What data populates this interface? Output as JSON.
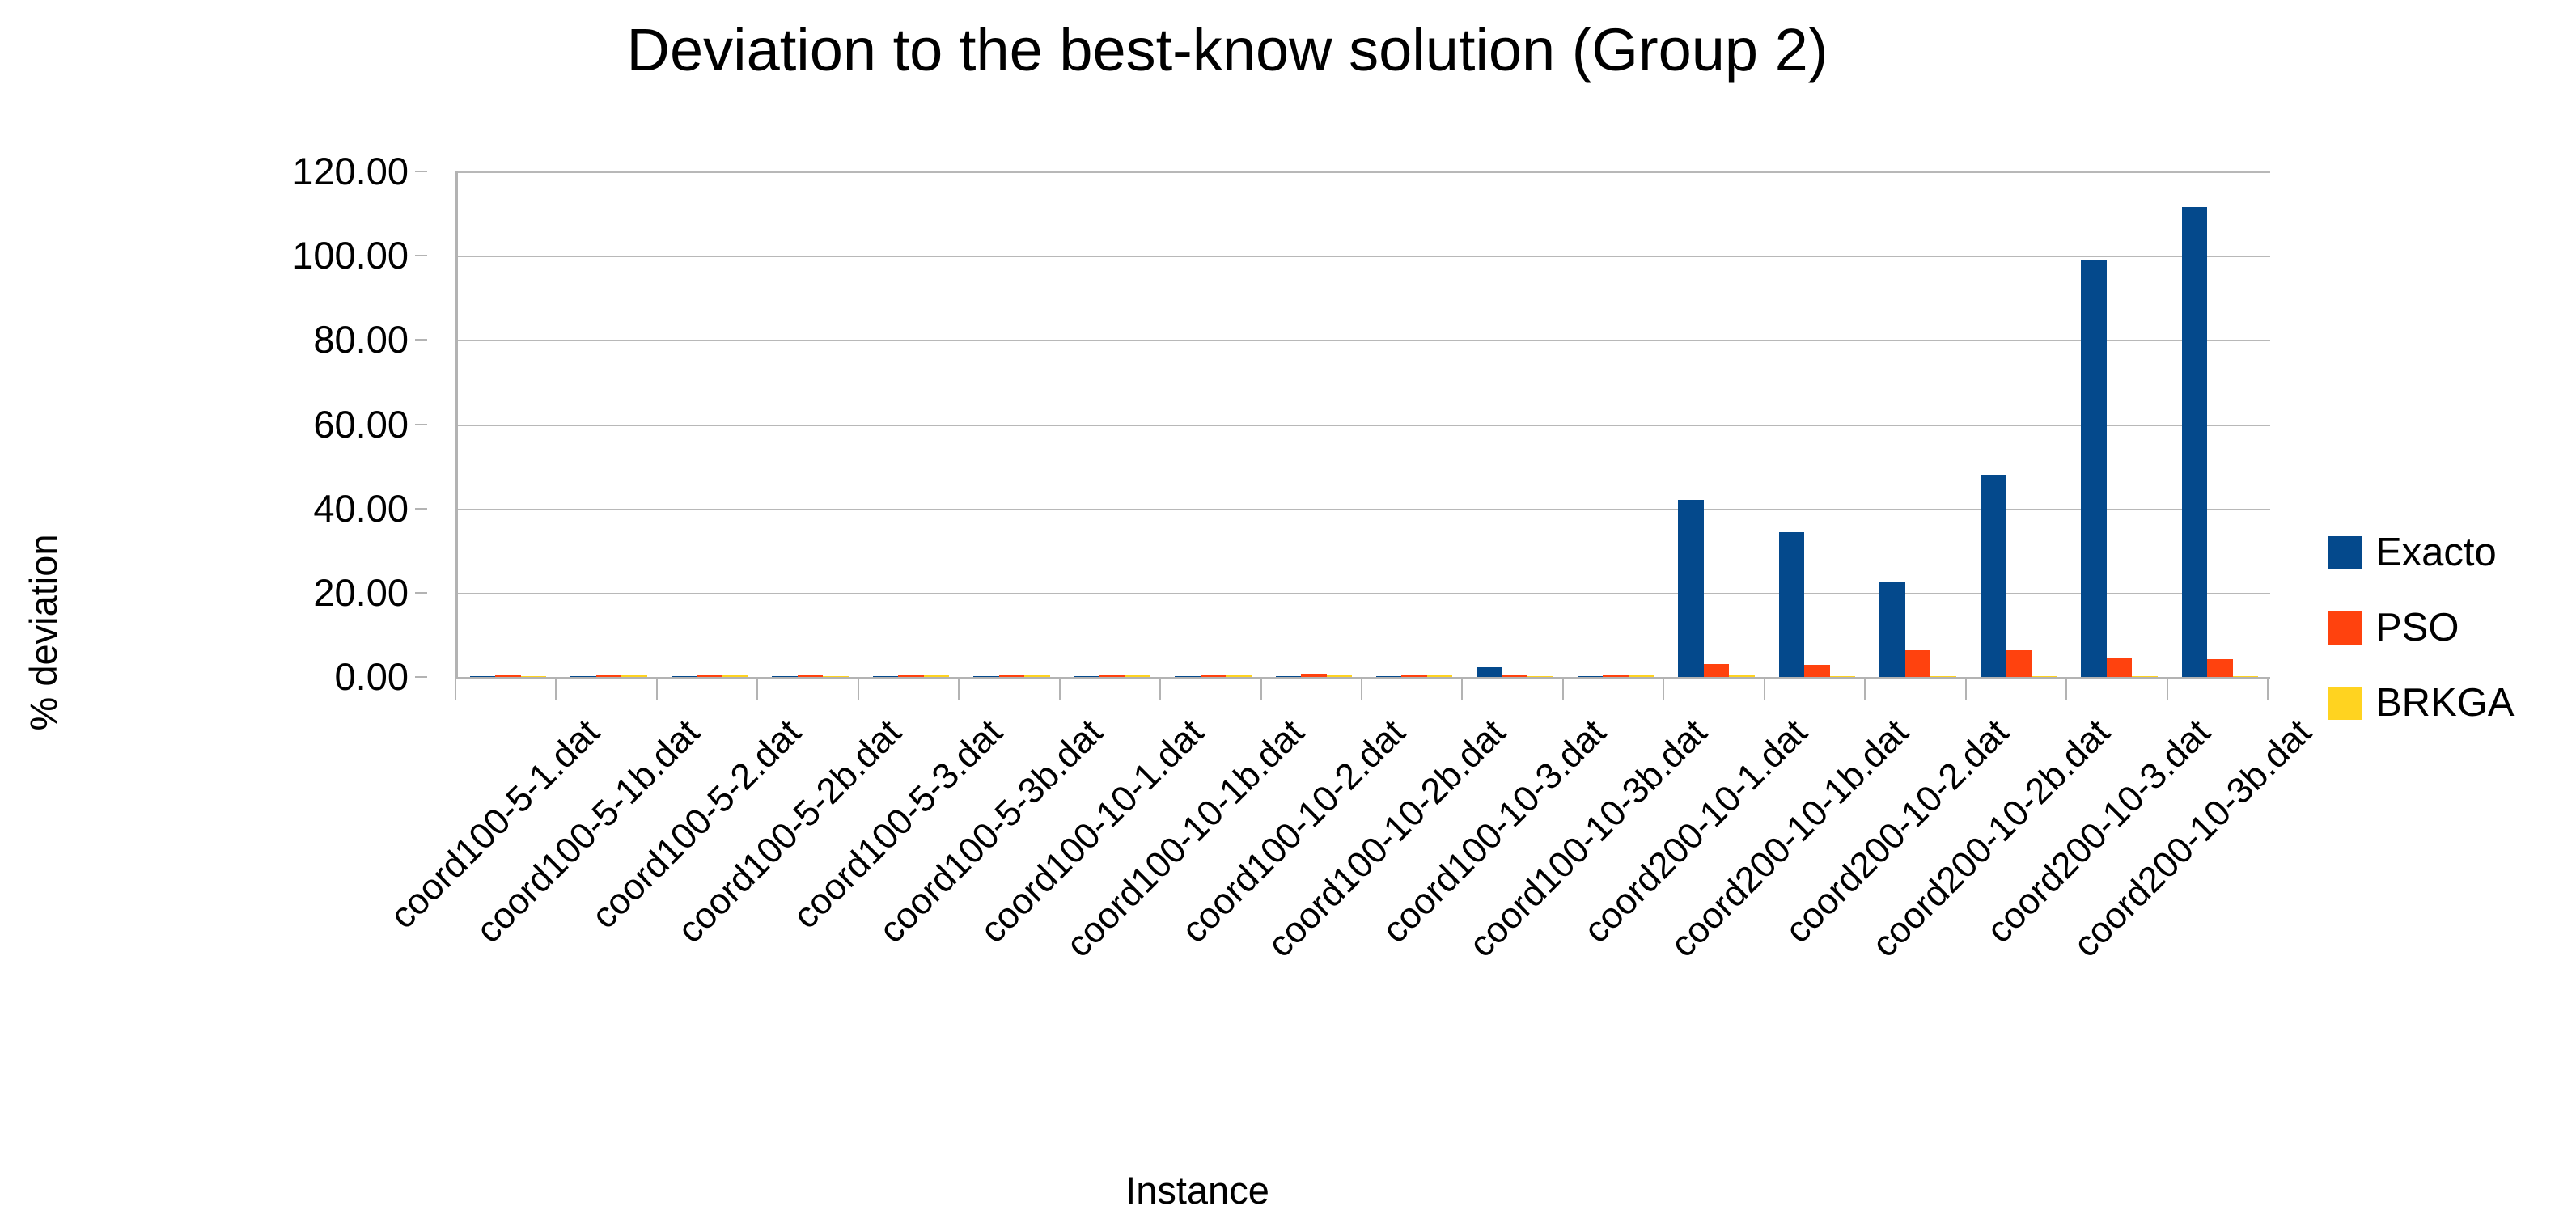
{
  "chart_data": {
    "type": "bar",
    "title": "Deviation to the best-know solution (Group 2)",
    "xlabel": "Instance",
    "ylabel": "% deviation",
    "ylim": [
      0,
      120
    ],
    "ytick_values": [
      0,
      20,
      40,
      60,
      80,
      100,
      120
    ],
    "ytick_labels": [
      "0.00",
      "20.00",
      "40.00",
      "60.00",
      "80.00",
      "100.00",
      "120.00"
    ],
    "grid": "horizontal",
    "legend_position": "right",
    "categories": [
      "coord100-5-1.dat",
      "coord100-5-1b.dat",
      "coord100-5-2.dat",
      "coord100-5-2b.dat",
      "coord100-5-3.dat",
      "coord100-5-3b.dat",
      "coord100-10-1.dat",
      "coord100-10-1b.dat",
      "coord100-10-2.dat",
      "coord100-10-2b.dat",
      "coord100-10-3.dat",
      "coord100-10-3b.dat",
      "coord200-10-1.dat",
      "coord200-10-1b.dat",
      "coord200-10-2.dat",
      "coord200-10-2b.dat",
      "coord200-10-3.dat",
      "coord200-10-3b.dat"
    ],
    "series": [
      {
        "name": "Exacto",
        "color": "#04498C",
        "values": [
          0.2,
          0.15,
          0.15,
          0.25,
          0.25,
          0.25,
          0.2,
          0.2,
          0.25,
          0.25,
          2.3,
          0.2,
          42.0,
          34.4,
          22.6,
          48.0,
          99.0,
          111.5
        ]
      },
      {
        "name": "PSO",
        "color": "#FF420E",
        "values": [
          0.55,
          0.4,
          0.45,
          0.4,
          0.6,
          0.4,
          0.4,
          0.45,
          0.7,
          0.5,
          0.5,
          0.6,
          3.0,
          2.8,
          6.3,
          6.4,
          4.5,
          4.3
        ]
      },
      {
        "name": "BRKGA",
        "color": "#FFD320",
        "values": [
          0.25,
          0.3,
          0.3,
          0.2,
          0.4,
          0.4,
          0.4,
          0.4,
          0.5,
          0.5,
          0.2,
          0.5,
          0.3,
          0.2,
          0.25,
          0.2,
          0.2,
          0.2
        ]
      }
    ],
    "colors": {
      "gridline": "#b8b8b8",
      "axis": "#b3b3b3",
      "background": "#ffffff",
      "text": "#000000"
    }
  }
}
